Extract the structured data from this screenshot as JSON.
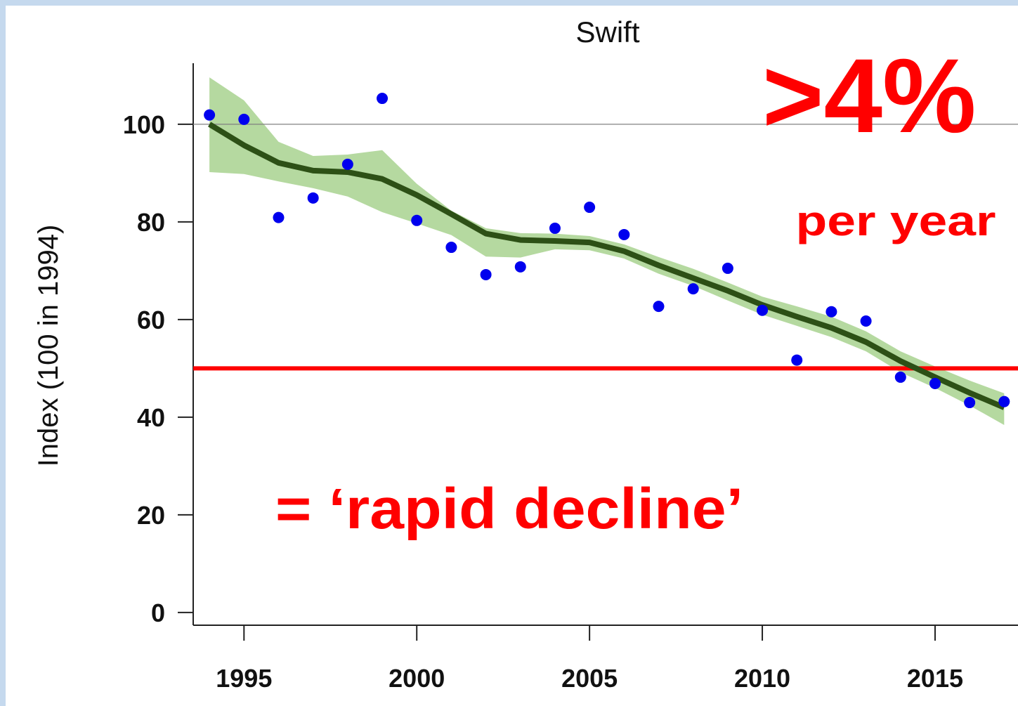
{
  "chart_data": {
    "type": "line",
    "title": "Swift",
    "y_label": "Index (100 in 1994)",
    "annotations": [
      ">4%",
      "per year",
      "= ‘rapid decline’"
    ],
    "annotation_color": "#ff0000",
    "x": [
      1994,
      1995,
      1996,
      1997,
      1998,
      1999,
      2000,
      2001,
      2002,
      2003,
      2004,
      2005,
      2006,
      2007,
      2008,
      2009,
      2010,
      2011,
      2012,
      2013,
      2014,
      2015,
      2016,
      2017
    ],
    "points": {
      "color": "#0000ee",
      "values": [
        101.9,
        101.0,
        80.9,
        84.9,
        91.8,
        105.3,
        80.3,
        74.8,
        69.2,
        70.8,
        78.7,
        83.0,
        77.4,
        62.7,
        66.3,
        70.5,
        61.9,
        51.7,
        61.6,
        59.7,
        48.2,
        46.9,
        43.0,
        43.2
      ]
    },
    "trend": {
      "color": "#2d5016",
      "values": [
        100,
        95.7,
        92.1,
        90.5,
        90.2,
        88.8,
        85.5,
        81.6,
        77.6,
        76.3,
        76.1,
        75.8,
        74.0,
        71.1,
        68.5,
        65.9,
        63.0,
        60.6,
        58.3,
        55.4,
        51.5,
        48.2,
        45.0,
        42.0
      ]
    },
    "band": {
      "color": "#b5d9a0",
      "upper": [
        109.6,
        104.9,
        96.4,
        93.5,
        93.8,
        94.7,
        87.8,
        82.3,
        78.7,
        77.7,
        77.6,
        77.1,
        75.4,
        72.8,
        70.4,
        67.6,
        64.7,
        62.7,
        60.6,
        57.6,
        53.5,
        50.4,
        47.5,
        44.9
      ],
      "lower": [
        90.2,
        89.8,
        88.3,
        86.9,
        85.2,
        82.0,
        79.7,
        77.3,
        72.9,
        72.7,
        74.4,
        74.2,
        72.5,
        69.4,
        66.9,
        63.9,
        61.0,
        58.7,
        56.4,
        53.5,
        49.2,
        46.0,
        42.4,
        38.4
      ]
    },
    "hlines": [
      {
        "value": 100,
        "color": "#808080"
      },
      {
        "value": 50,
        "color": "#ff0000"
      }
    ],
    "xlim": [
      1993.53,
      2017.4
    ],
    "ylim": [
      -2.6,
      112.5
    ],
    "xticks": [
      1995,
      2000,
      2005,
      2010,
      2015
    ],
    "yticks": [
      0,
      20,
      40,
      60,
      80,
      100
    ]
  }
}
